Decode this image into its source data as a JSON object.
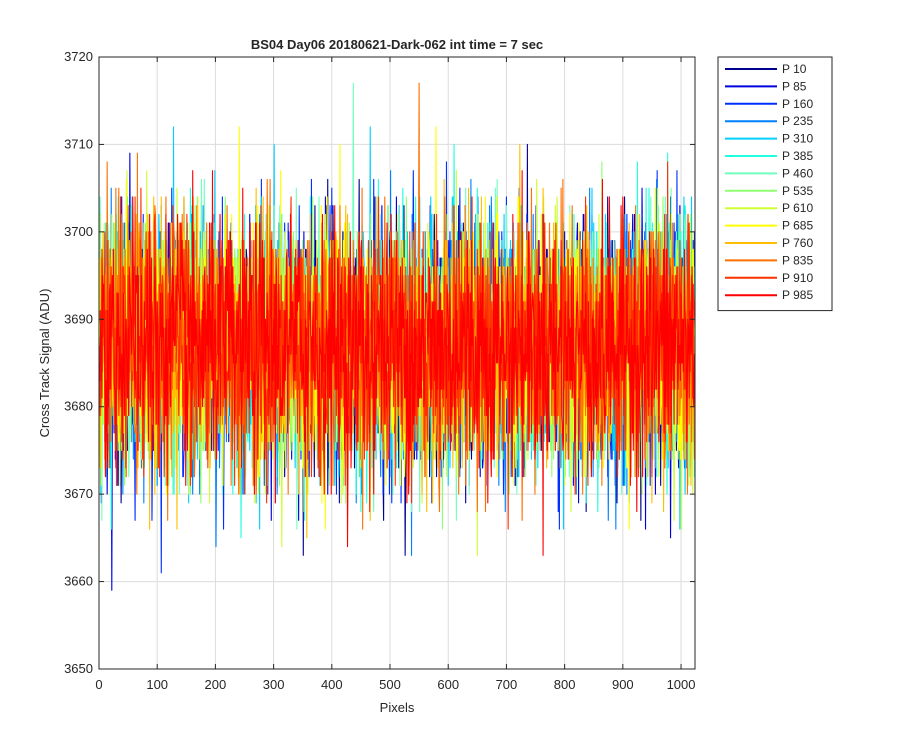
{
  "chart_data": {
    "type": "line",
    "title": "BS04 Day06 20180621-Dark-062 int time = 7 sec",
    "xlabel": "Pixels",
    "ylabel": "Cross Track Signal (ADU)",
    "xlim": [
      0,
      1024
    ],
    "ylim": [
      3650,
      3720
    ],
    "xticks": [
      0,
      100,
      200,
      300,
      400,
      500,
      600,
      700,
      800,
      900,
      1000
    ],
    "yticks": [
      3650,
      3660,
      3670,
      3680,
      3690,
      3700,
      3710,
      3720
    ],
    "grid": true,
    "legend_position": "outside-top-right",
    "noise_model": {
      "samples_per_series": 1024,
      "mean": 3687,
      "std": 7,
      "min": 3659,
      "max": 3719
    },
    "series": [
      {
        "name": "P 10",
        "color": "#00008f"
      },
      {
        "name": "P 85",
        "color": "#0000df"
      },
      {
        "name": "P 160",
        "color": "#0030ff"
      },
      {
        "name": "P 235",
        "color": "#0080ff"
      },
      {
        "name": "P 310",
        "color": "#00cfff"
      },
      {
        "name": "P 385",
        "color": "#20ffdf"
      },
      {
        "name": "P 460",
        "color": "#70ffbf"
      },
      {
        "name": "P 535",
        "color": "#8fff70"
      },
      {
        "name": "P 610",
        "color": "#cfff30"
      },
      {
        "name": "P 685",
        "color": "#ffff00"
      },
      {
        "name": "P 760",
        "color": "#ffbf00"
      },
      {
        "name": "P 835",
        "color": "#ff7000"
      },
      {
        "name": "P 910",
        "color": "#ff3000"
      },
      {
        "name": "P 985",
        "color": "#ff0000"
      }
    ]
  }
}
